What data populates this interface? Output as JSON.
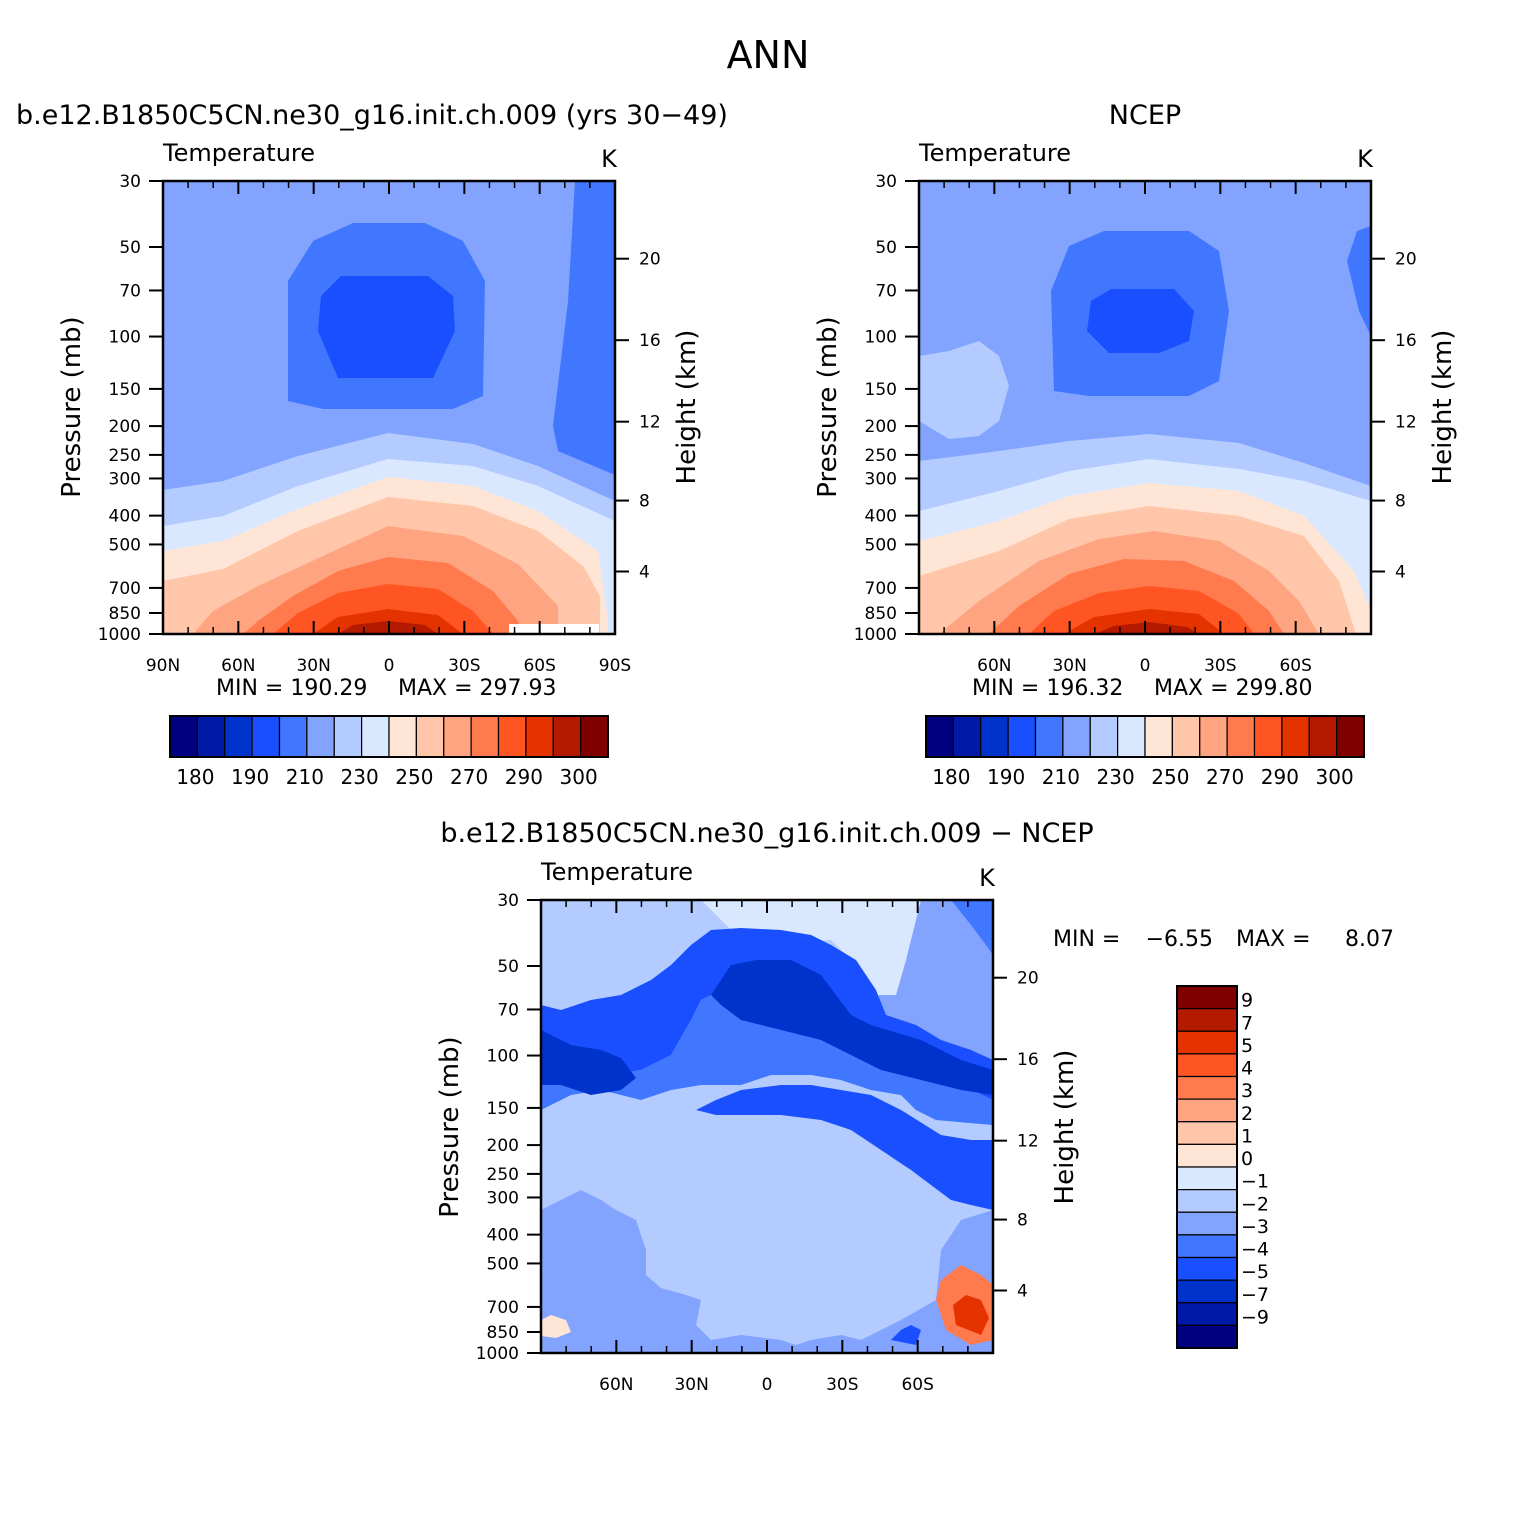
{
  "page_title": "ANN",
  "colors": {
    "temperature_scale": [
      "#000080",
      "#0019a6",
      "#0033cc",
      "#1a4fff",
      "#4177ff",
      "#82a4ff",
      "#b3cbff",
      "#d9e8ff",
      "#ffe5d6",
      "#ffc6aa",
      "#ffa480",
      "#ff7a4d",
      "#ff5522",
      "#e53300",
      "#b31a00",
      "#800000"
    ],
    "difference_scale": [
      "#000080",
      "#0019a6",
      "#0033cc",
      "#1a4fff",
      "#4177ff",
      "#82a4ff",
      "#b3cbff",
      "#d9e8ff",
      "#ffe5d6",
      "#ffc6aa",
      "#ffa480",
      "#ff7a4d",
      "#ff5522",
      "#e53300",
      "#b31a00",
      "#800000"
    ]
  },
  "chart_data": [
    {
      "type": "heatmap",
      "title": "b.e12.B1850C5CN.ne30_g16.init.ch.009 (yrs 30−49)",
      "variable": "Temperature",
      "units": "K",
      "ylabel": "Pressure (mb)",
      "y2label": "Height (km)",
      "x_ticks": [
        "90N",
        "60N",
        "30N",
        "0",
        "30S",
        "60S",
        "90S"
      ],
      "x_values": [
        90,
        60,
        30,
        0,
        -30,
        -60,
        -90
      ],
      "xlim": [
        90,
        -90
      ],
      "y_ticks": [
        30,
        50,
        70,
        100,
        150,
        200,
        250,
        300,
        400,
        500,
        700,
        850,
        1000
      ],
      "ylim": [
        30,
        1000
      ],
      "y_scale": "log",
      "y2_ticks": [
        20,
        16,
        12,
        8,
        4
      ],
      "min_label": "MIN = 190.29",
      "max_label": "MAX = 297.93",
      "min": 190.29,
      "max": 297.93,
      "colorbar": {
        "orientation": "horizontal",
        "tick_labels": [
          "180",
          "190",
          "210",
          "230",
          "250",
          "270",
          "290",
          "300"
        ],
        "levels": [
          175,
          180,
          185,
          190,
          200,
          210,
          220,
          230,
          240,
          250,
          260,
          270,
          280,
          290,
          295,
          300
        ]
      }
    },
    {
      "type": "heatmap",
      "title": "NCEP",
      "variable": "Temperature",
      "units": "K",
      "ylabel": "Pressure (mb)",
      "y2label": "Height (km)",
      "x_ticks": [
        "60N",
        "30N",
        "0",
        "30S",
        "60S"
      ],
      "x_values": [
        60,
        30,
        0,
        -30,
        -60
      ],
      "xlim": [
        90,
        -90
      ],
      "y_ticks": [
        30,
        50,
        70,
        100,
        150,
        200,
        250,
        300,
        400,
        500,
        700,
        850,
        1000
      ],
      "ylim": [
        30,
        1000
      ],
      "y_scale": "log",
      "y2_ticks": [
        20,
        16,
        12,
        8,
        4
      ],
      "min_label": "MIN = 196.32",
      "max_label": "MAX = 299.80",
      "min": 196.32,
      "max": 299.8,
      "colorbar": {
        "orientation": "horizontal",
        "tick_labels": [
          "180",
          "190",
          "210",
          "230",
          "250",
          "270",
          "290",
          "300"
        ],
        "levels": [
          175,
          180,
          185,
          190,
          200,
          210,
          220,
          230,
          240,
          250,
          260,
          270,
          280,
          290,
          295,
          300
        ]
      }
    },
    {
      "type": "heatmap",
      "title": "b.e12.B1850C5CN.ne30_g16.init.ch.009 − NCEP",
      "variable": "Temperature",
      "units": "K",
      "ylabel": "Pressure (mb)",
      "y2label": "Height (km)",
      "x_ticks": [
        "60N",
        "30N",
        "0",
        "30S",
        "60S"
      ],
      "x_values": [
        60,
        30,
        0,
        -30,
        -60
      ],
      "xlim": [
        90,
        -90
      ],
      "y_ticks": [
        30,
        50,
        70,
        100,
        150,
        200,
        250,
        300,
        400,
        500,
        700,
        850,
        1000
      ],
      "ylim": [
        30,
        1000
      ],
      "y_scale": "log",
      "y2_ticks": [
        20,
        16,
        12,
        8,
        4
      ],
      "min_label": "MIN =",
      "min_value": "−6.55",
      "max_label": "MAX =",
      "max_value": "8.07",
      "min": -6.55,
      "max": 8.07,
      "colorbar": {
        "orientation": "vertical",
        "tick_labels": [
          "9",
          "7",
          "5",
          "4",
          "3",
          "2",
          "1",
          "0",
          "−1",
          "−2",
          "−3",
          "−4",
          "−5",
          "−7",
          "−9"
        ],
        "levels": [
          9,
          7,
          5,
          4,
          3,
          2,
          1,
          0,
          -1,
          -2,
          -3,
          -4,
          -5,
          -7,
          -9
        ]
      }
    }
  ]
}
